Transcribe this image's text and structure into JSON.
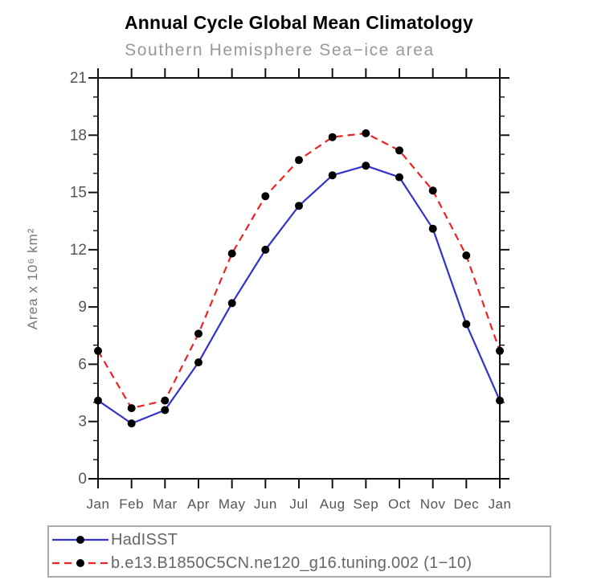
{
  "page": {
    "background": "#ffffff"
  },
  "chart_data": {
    "type": "line",
    "title": "Annual Cycle Global Mean Climatology",
    "subtitle": "Southern Hemisphere Sea−ice area",
    "ylabel": "Area x 10⁶ km²",
    "xlabel": "",
    "categories": [
      "Jan",
      "Feb",
      "Mar",
      "Apr",
      "May",
      "Jun",
      "Jul",
      "Aug",
      "Sep",
      "Oct",
      "Nov",
      "Dec",
      "Jan"
    ],
    "ylim": [
      0,
      21
    ],
    "yticks": [
      0,
      3,
      6,
      9,
      12,
      15,
      18,
      21
    ],
    "y_minor_step": 1,
    "grid": false,
    "frame": true,
    "legend_position": "bottom-left-box",
    "series": [
      {
        "name": "HadISST",
        "color": "#3333cc",
        "line_style": "solid",
        "marker": "filled-circle",
        "marker_color": "#000000",
        "values": [
          4.1,
          2.9,
          3.6,
          6.1,
          9.2,
          12.0,
          14.3,
          15.9,
          16.4,
          15.8,
          13.1,
          8.1,
          4.1
        ]
      },
      {
        "name": "b.e13.B1850C5CN.ne120_g16.tuning.002 (1−10)",
        "color": "#ee2222",
        "line_style": "dashed",
        "marker": "filled-circle",
        "marker_color": "#000000",
        "values": [
          6.7,
          3.7,
          4.1,
          7.6,
          11.8,
          14.8,
          16.7,
          17.9,
          18.1,
          17.2,
          15.1,
          11.7,
          6.7
        ]
      }
    ],
    "colors": {
      "axis": "#111111",
      "tick_labels": "#555555",
      "subtitle": "#999999",
      "axis_label": "#777777",
      "legend_text": "#666666",
      "legend_border": "#aaaaaa",
      "marker": "#000000"
    }
  }
}
